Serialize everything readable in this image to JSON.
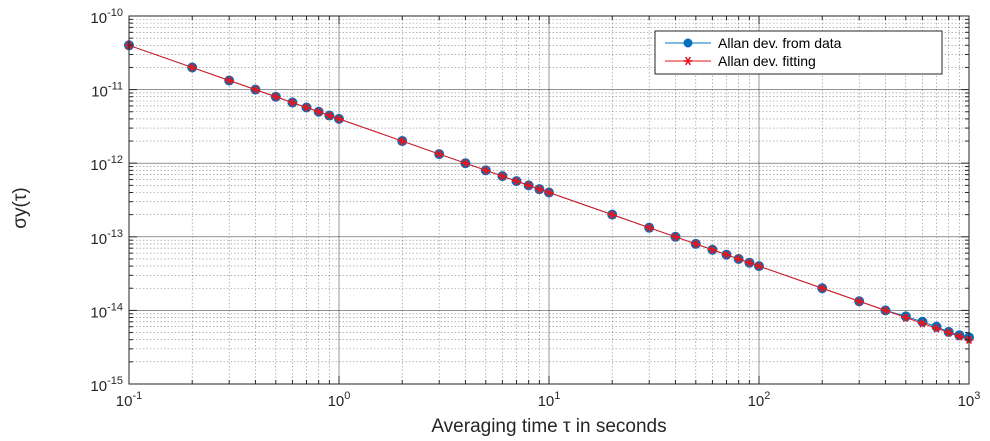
{
  "chart_data": {
    "type": "line",
    "xscale": "log",
    "yscale": "log",
    "xlim": [
      0.1,
      1000
    ],
    "ylim": [
      1e-15,
      1e-10
    ],
    "grid": true,
    "minor_grid": true,
    "legend_position": "top-right",
    "xlabel": "Averaging time τ in seconds",
    "ylabel": "σy(τ)",
    "x_tick_labels": [
      {
        "base": "10",
        "exp": "-1",
        "value": 0.1
      },
      {
        "base": "10",
        "exp": "0",
        "value": 1
      },
      {
        "base": "10",
        "exp": "1",
        "value": 10
      },
      {
        "base": "10",
        "exp": "2",
        "value": 100
      },
      {
        "base": "10",
        "exp": "3",
        "value": 1000
      }
    ],
    "y_tick_labels": [
      {
        "base": "10",
        "exp": "-15",
        "value": 1e-15
      },
      {
        "base": "10",
        "exp": "-14",
        "value": 1e-14
      },
      {
        "base": "10",
        "exp": "-13",
        "value": 1e-13
      },
      {
        "base": "10",
        "exp": "-12",
        "value": 1e-12
      },
      {
        "base": "10",
        "exp": "-11",
        "value": 1e-11
      },
      {
        "base": "10",
        "exp": "-10",
        "value": 1e-10
      }
    ],
    "x": [
      0.1,
      0.2,
      0.3,
      0.4,
      0.5,
      0.6,
      0.7,
      0.8,
      0.9,
      1,
      2,
      3,
      4,
      5,
      6,
      7,
      8,
      9,
      10,
      20,
      30,
      40,
      50,
      60,
      70,
      80,
      90,
      100,
      200,
      300,
      400,
      500,
      600,
      700,
      800,
      900,
      1000
    ],
    "series": [
      {
        "name": "Allan dev. from data",
        "marker": "circle",
        "color": "#0072BD",
        "values": [
          4e-11,
          2e-11,
          1.33e-11,
          1e-11,
          8e-12,
          6.67e-12,
          5.71e-12,
          5e-12,
          4.44e-12,
          4e-12,
          2e-12,
          1.33e-12,
          1e-12,
          8e-13,
          6.67e-13,
          5.71e-13,
          5e-13,
          4.44e-13,
          4e-13,
          2e-13,
          1.33e-13,
          1e-13,
          8e-14,
          6.67e-14,
          5.71e-14,
          5e-14,
          4.44e-14,
          4e-14,
          2e-14,
          1.33e-14,
          1e-14,
          8.3e-15,
          7e-15,
          6e-15,
          5.1e-15,
          4.6e-15,
          4.3e-15
        ]
      },
      {
        "name": "Allan dev. fitting",
        "marker": "asterisk",
        "color": "#E8151B",
        "values": [
          4e-11,
          2e-11,
          1.33e-11,
          1e-11,
          8e-12,
          6.67e-12,
          5.71e-12,
          5e-12,
          4.44e-12,
          4e-12,
          2e-12,
          1.33e-12,
          1e-12,
          8e-13,
          6.67e-13,
          5.71e-13,
          5e-13,
          4.44e-13,
          4e-13,
          2e-13,
          1.33e-13,
          1e-13,
          8e-14,
          6.67e-14,
          5.71e-14,
          5e-14,
          4.44e-14,
          4e-14,
          2e-14,
          1.33e-14,
          1e-14,
          8e-15,
          6.67e-15,
          5.71e-15,
          5e-15,
          4.44e-15,
          4e-15
        ]
      }
    ]
  }
}
